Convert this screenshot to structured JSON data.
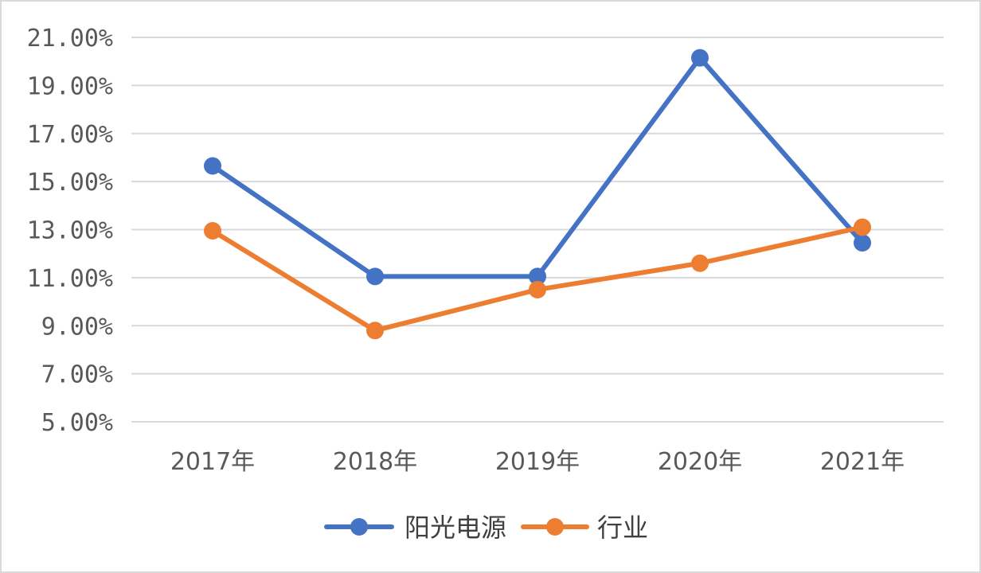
{
  "chart_data": {
    "type": "line",
    "title": "",
    "xlabel": "",
    "ylabel": "",
    "categories": [
      "2017年",
      "2018年",
      "2019年",
      "2020年",
      "2021年"
    ],
    "y_ticks": [
      "5.00%",
      "7.00%",
      "9.00%",
      "11.00%",
      "13.00%",
      "15.00%",
      "17.00%",
      "19.00%",
      "21.00%"
    ],
    "ylim": [
      5,
      21
    ],
    "y_unit": "%",
    "grid": true,
    "legend_position": "bottom",
    "series": [
      {
        "name": "阳光电源",
        "color": "#4472c4",
        "values": [
          15.65,
          11.05,
          11.05,
          20.15,
          12.45
        ]
      },
      {
        "name": "行业",
        "color": "#ed7d31",
        "values": [
          12.95,
          8.8,
          10.5,
          11.6,
          13.1
        ]
      }
    ]
  }
}
